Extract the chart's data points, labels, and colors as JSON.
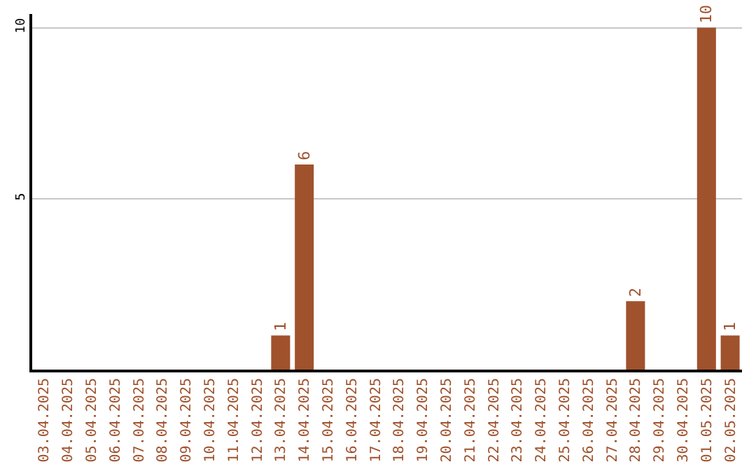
{
  "chart_data": {
    "type": "bar",
    "categories": [
      "03.04.2025",
      "04.04.2025",
      "05.04.2025",
      "06.04.2025",
      "07.04.2025",
      "08.04.2025",
      "09.04.2025",
      "10.04.2025",
      "11.04.2025",
      "12.04.2025",
      "13.04.2025",
      "14.04.2025",
      "15.04.2025",
      "16.04.2025",
      "17.04.2025",
      "18.04.2025",
      "19.04.2025",
      "20.04.2025",
      "21.04.2025",
      "22.04.2025",
      "23.04.2025",
      "24.04.2025",
      "25.04.2025",
      "26.04.2025",
      "27.04.2025",
      "28.04.2025",
      "29.04.2025",
      "30.04.2025",
      "01.05.2025",
      "02.05.2025"
    ],
    "values": [
      0,
      0,
      0,
      0,
      0,
      0,
      0,
      0,
      0,
      0,
      1,
      6,
      0,
      0,
      0,
      0,
      0,
      0,
      0,
      0,
      0,
      0,
      0,
      0,
      0,
      2,
      0,
      0,
      10,
      1
    ],
    "value_labels": [
      null,
      null,
      null,
      null,
      null,
      null,
      null,
      null,
      null,
      null,
      "1",
      "6",
      null,
      null,
      null,
      null,
      null,
      null,
      null,
      null,
      null,
      null,
      null,
      null,
      null,
      "2",
      null,
      null,
      "10",
      "1"
    ],
    "color": "#a0522d",
    "ylim": [
      0,
      10.4
    ],
    "yticks": [
      5,
      10
    ],
    "grid": "y"
  }
}
